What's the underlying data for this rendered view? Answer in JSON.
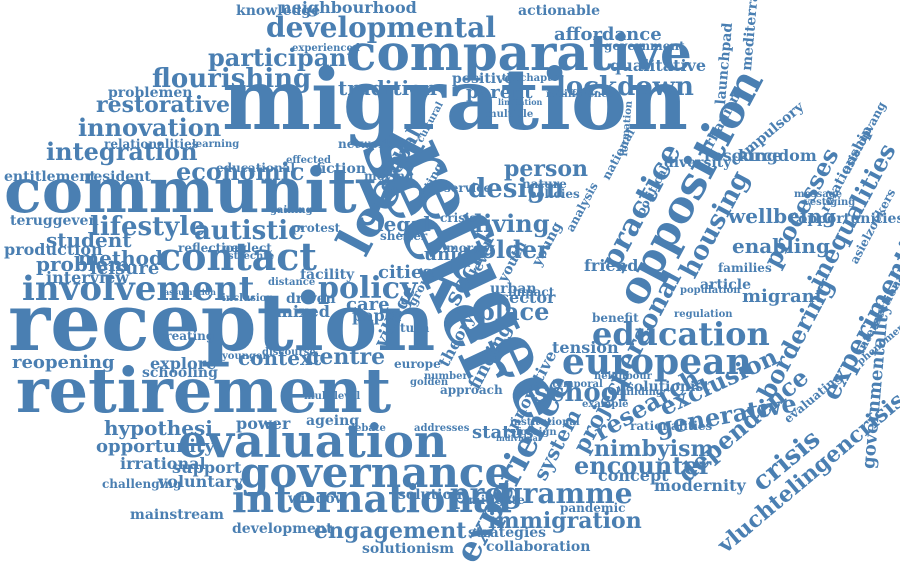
{
  "color": "#4a7fb2",
  "words": [
    {
      "t": "migration",
      "r": 0
    },
    {
      "t": "reception",
      "r": 0
    },
    {
      "t": "community",
      "r": 0
    },
    {
      "t": "retirement",
      "r": 0
    },
    {
      "t": "seeker",
      "r": 65
    },
    {
      "t": "refugee",
      "r": 65
    },
    {
      "t": "comparative",
      "r": 0
    },
    {
      "t": "evaluation",
      "r": 0
    },
    {
      "t": "governance",
      "r": 0
    },
    {
      "t": "international",
      "r": 0
    },
    {
      "t": "contact",
      "r": 0
    },
    {
      "t": "local",
      "r": -62
    },
    {
      "t": "involvement",
      "r": 0
    },
    {
      "t": "opposition",
      "r": -62
    },
    {
      "t": "european",
      "r": 0
    },
    {
      "t": "education",
      "r": 0
    },
    {
      "t": "experience",
      "r": -62
    },
    {
      "t": "developmental",
      "r": 0
    },
    {
      "t": "lockdown",
      "r": 0
    },
    {
      "t": "flourishing",
      "r": 0
    },
    {
      "t": "participant",
      "r": 0
    },
    {
      "t": "integration",
      "r": 0
    },
    {
      "t": "innovation",
      "r": 0
    },
    {
      "t": "restorative",
      "r": 0
    },
    {
      "t": "economic",
      "r": 0
    },
    {
      "t": "policy",
      "r": 0
    },
    {
      "t": "design",
      "r": 0
    },
    {
      "t": "person",
      "r": 0
    },
    {
      "t": "personal",
      "r": -62
    },
    {
      "t": "practice",
      "r": -62
    },
    {
      "t": "school",
      "r": 0
    },
    {
      "t": "research",
      "r": -30
    },
    {
      "t": "programme",
      "r": 0
    },
    {
      "t": "encounter",
      "r": 0
    },
    {
      "t": "generative",
      "r": -10
    },
    {
      "t": "exclusion",
      "r": -25
    },
    {
      "t": "nimbyism",
      "r": 0
    },
    {
      "t": "immigration",
      "r": 0
    },
    {
      "t": "engagement",
      "r": 0
    },
    {
      "t": "lifestyle",
      "r": 0
    },
    {
      "t": "autistic",
      "r": 0
    },
    {
      "t": "centre",
      "r": 0
    },
    {
      "t": "context",
      "r": 0
    },
    {
      "t": "tradition",
      "r": 0
    },
    {
      "t": "parent",
      "r": 0
    },
    {
      "t": "positive",
      "r": 0
    },
    {
      "t": "affordance",
      "r": 0
    },
    {
      "t": "qualitative",
      "r": 0
    },
    {
      "t": "knowledge",
      "r": 0
    },
    {
      "t": "neighbourhood",
      "r": 0
    },
    {
      "t": "actionable",
      "r": 0
    },
    {
      "t": "government",
      "r": 0
    },
    {
      "t": "urbanism",
      "r": -62
    },
    {
      "t": "compulsory",
      "r": -40
    },
    {
      "t": "enabling",
      "r": 0
    },
    {
      "t": "wellbeing",
      "r": 0
    },
    {
      "t": "migrant",
      "r": 0
    },
    {
      "t": "article",
      "r": 0
    },
    {
      "t": "families",
      "r": 0
    },
    {
      "t": "housing",
      "r": -62
    },
    {
      "t": "resource",
      "r": 0
    },
    {
      "t": "processes",
      "r": -62
    },
    {
      "t": "inequalities",
      "r": -62
    },
    {
      "t": "bordering",
      "r": -62
    },
    {
      "t": "experimenting",
      "r": -62
    },
    {
      "t": "governmentality",
      "r": -85
    },
    {
      "t": "dependence",
      "r": -40
    },
    {
      "t": "crisis",
      "r": -40
    },
    {
      "t": "vluchtelingencrisis",
      "r": -40
    },
    {
      "t": "hypothesi",
      "r": 0
    },
    {
      "t": "opportunity",
      "r": 0
    },
    {
      "t": "irrational",
      "r": 0
    },
    {
      "t": "support",
      "r": 0
    },
    {
      "t": "voluntary",
      "r": 0
    },
    {
      "t": "power",
      "r": 0
    },
    {
      "t": "ageing",
      "r": 0
    },
    {
      "t": "window",
      "r": 0
    },
    {
      "t": "solution",
      "r": 0
    },
    {
      "t": "development",
      "r": 0
    },
    {
      "t": "solutionism",
      "r": 0
    },
    {
      "t": "strategies",
      "r": 0
    },
    {
      "t": "collaboration",
      "r": 0
    },
    {
      "t": "mitigate",
      "r": 0
    },
    {
      "t": "status",
      "r": 0
    },
    {
      "t": "concept",
      "r": 0
    },
    {
      "t": "modernity",
      "r": 0
    },
    {
      "t": "project",
      "r": -62
    },
    {
      "t": "system",
      "r": -62
    },
    {
      "t": "reopening",
      "r": 0
    },
    {
      "t": "explore",
      "r": 0
    },
    {
      "t": "schooling",
      "r": 0
    },
    {
      "t": "creating",
      "r": 0
    },
    {
      "t": "student",
      "r": 0
    },
    {
      "t": "method",
      "r": 0
    },
    {
      "t": "problem",
      "r": 0
    },
    {
      "t": "leisure",
      "r": 0
    },
    {
      "t": "interview",
      "r": 0
    },
    {
      "t": "production",
      "r": 0
    },
    {
      "t": "teruggeven",
      "r": 0
    },
    {
      "t": "entitlement",
      "r": 0
    },
    {
      "t": "resident",
      "r": 0
    },
    {
      "t": "problemen",
      "r": 0
    },
    {
      "t": "relationalities",
      "r": 0
    },
    {
      "t": "legal",
      "r": 0
    },
    {
      "t": "living",
      "r": 0
    },
    {
      "t": "older",
      "r": 0
    },
    {
      "t": "social",
      "r": -62
    },
    {
      "t": "global",
      "r": -62
    },
    {
      "t": "cities",
      "r": 0
    },
    {
      "t": "place",
      "r": 0
    },
    {
      "t": "sector",
      "r": 0
    },
    {
      "t": "union",
      "r": 0
    },
    {
      "t": "care",
      "r": 0
    },
    {
      "t": "mixed",
      "r": 0
    },
    {
      "t": "driven",
      "r": 0
    },
    {
      "t": "paper",
      "r": 0
    },
    {
      "t": "friend",
      "r": 0
    },
    {
      "t": "tension",
      "r": 0
    },
    {
      "t": "village",
      "r": -62
    },
    {
      "t": "finding",
      "r": -62
    },
    {
      "t": "kingdom",
      "r": 0
    },
    {
      "t": "diversity",
      "r": 0
    },
    {
      "t": "relationship",
      "r": -62
    },
    {
      "t": "opportunities",
      "r": 0
    },
    {
      "t": "mainstream",
      "r": 0
    },
    {
      "t": "challenging",
      "r": 0
    },
    {
      "t": "launchpad",
      "r": -85
    },
    {
      "t": "mediterranean",
      "r": -85
    },
    {
      "t": "pandemic",
      "r": 0
    },
    {
      "t": "innovative",
      "r": -62
    },
    {
      "t": "theory",
      "r": -62
    },
    {
      "t": "solutionist",
      "r": 0
    },
    {
      "t": "rationalities",
      "r": 0
    },
    {
      "t": "evaluating",
      "r": -40
    },
    {
      "t": "intersectionalities",
      "r": -62
    },
    {
      "t": "regulation",
      "r": 0
    },
    {
      "t": "population",
      "r": 0
    },
    {
      "t": "network",
      "r": 0
    },
    {
      "t": "benefit",
      "r": 0
    },
    {
      "t": "facility",
      "r": 0
    },
    {
      "t": "fiction",
      "r": 0
    },
    {
      "t": "educational",
      "r": 0
    },
    {
      "t": "effected",
      "r": 0
    },
    {
      "t": "learning",
      "r": 0
    },
    {
      "t": "experienced",
      "r": 0
    },
    {
      "t": "neglect",
      "r": 0
    },
    {
      "t": "reflection",
      "r": 0
    },
    {
      "t": "protest",
      "r": 0
    },
    {
      "t": "shelter",
      "r": 0
    },
    {
      "t": "urban",
      "r": 0
    },
    {
      "t": "turn",
      "r": 0
    },
    {
      "t": "impact",
      "r": 0
    },
    {
      "t": "service",
      "r": 0
    },
    {
      "t": "nature",
      "r": 0
    },
    {
      "t": "policies",
      "r": 0
    },
    {
      "t": "crisis",
      "r": 0
    },
    {
      "t": "more",
      "r": 0
    },
    {
      "t": "level",
      "r": -62
    },
    {
      "t": "youth",
      "r": -62
    },
    {
      "t": "young",
      "r": -62
    },
    {
      "t": "moving",
      "r": 0
    },
    {
      "t": "debate",
      "r": 0
    },
    {
      "t": "addresses",
      "r": 0
    },
    {
      "t": "multilevel",
      "r": 0
    },
    {
      "t": "building",
      "r": 0
    },
    {
      "t": "neighbour",
      "r": 0
    },
    {
      "t": "indifference",
      "r": 0
    },
    {
      "t": "thechapter",
      "r": 0
    },
    {
      "t": "vestiging",
      "r": 0
    },
    {
      "t": "message",
      "r": 0
    },
    {
      "t": "asielzoekers",
      "r": -62
    },
    {
      "t": "asielopvang",
      "r": -62
    },
    {
      "t": "formation",
      "r": -85
    },
    {
      "t": "political",
      "r": -62
    },
    {
      "t": "national",
      "r": -62
    },
    {
      "t": "foreign",
      "r": 0
    },
    {
      "t": "europe",
      "r": 0
    },
    {
      "t": "golden",
      "r": 0
    },
    {
      "t": "approach",
      "r": 0
    },
    {
      "t": "example",
      "r": 0
    },
    {
      "t": "temporal",
      "r": 0
    },
    {
      "t": "analysis",
      "r": -62
    },
    {
      "t": "number",
      "r": 0
    },
    {
      "t": "institutional",
      "r": 0
    },
    {
      "t": "individual",
      "r": 0
    },
    {
      "t": "younger",
      "r": 0
    },
    {
      "t": "discourse",
      "r": 0
    },
    {
      "t": "inclusion",
      "r": 0
    },
    {
      "t": "assumption",
      "r": 0
    },
    {
      "t": "distance",
      "r": 0
    },
    {
      "t": "strechte",
      "r": 0
    },
    {
      "t": "sitting",
      "r": -62
    },
    {
      "t": "gaining",
      "r": 0
    },
    {
      "t": "group",
      "r": -62
    },
    {
      "t": "phenomenon",
      "r": -40
    },
    {
      "t": "limitation",
      "r": 0
    },
    {
      "t": "cultural",
      "r": -62
    },
    {
      "t": "multiple",
      "r": 0
    }
  ]
}
